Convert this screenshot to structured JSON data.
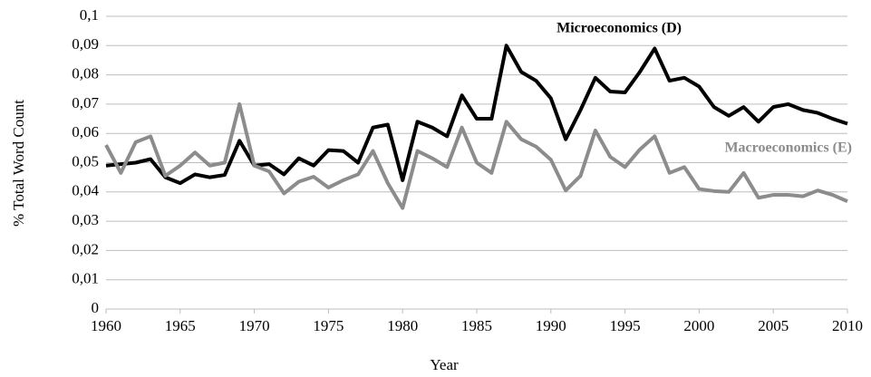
{
  "chart_data": {
    "type": "line",
    "x": [
      1960,
      1961,
      1962,
      1963,
      1964,
      1965,
      1966,
      1967,
      1968,
      1969,
      1970,
      1971,
      1972,
      1973,
      1974,
      1975,
      1976,
      1977,
      1978,
      1979,
      1980,
      1981,
      1982,
      1983,
      1984,
      1985,
      1986,
      1987,
      1988,
      1989,
      1990,
      1991,
      1992,
      1993,
      1994,
      1995,
      1996,
      1997,
      1998,
      1999,
      2000,
      2001,
      2002,
      2003,
      2004,
      2005,
      2006,
      2007,
      2008,
      2009,
      2010
    ],
    "series": [
      {
        "name": "Microeconomics (D)",
        "color": "#000000",
        "values": [
          0.049,
          0.0495,
          0.05,
          0.0512,
          0.045,
          0.043,
          0.046,
          0.045,
          0.0458,
          0.0575,
          0.049,
          0.0495,
          0.046,
          0.0515,
          0.049,
          0.0543,
          0.054,
          0.05,
          0.062,
          0.063,
          0.044,
          0.064,
          0.062,
          0.059,
          0.073,
          0.065,
          0.065,
          0.09,
          0.081,
          0.078,
          0.072,
          0.058,
          0.068,
          0.079,
          0.0743,
          0.074,
          0.081,
          0.089,
          0.078,
          0.079,
          0.076,
          0.069,
          0.066,
          0.069,
          0.064,
          0.069,
          0.07,
          0.068,
          0.067,
          0.065,
          0.0633
        ]
      },
      {
        "name": "Macroeconomics (E)",
        "color": "#8c8c8c",
        "values": [
          0.056,
          0.0465,
          0.057,
          0.059,
          0.0455,
          0.049,
          0.0535,
          0.049,
          0.05,
          0.07,
          0.049,
          0.047,
          0.0395,
          0.0435,
          0.0452,
          0.0415,
          0.044,
          0.046,
          0.054,
          0.043,
          0.0345,
          0.054,
          0.0515,
          0.0485,
          0.062,
          0.05,
          0.0465,
          0.064,
          0.058,
          0.0555,
          0.051,
          0.0405,
          0.0455,
          0.061,
          0.052,
          0.0485,
          0.0545,
          0.059,
          0.0465,
          0.0485,
          0.041,
          0.0403,
          0.04,
          0.0465,
          0.038,
          0.039,
          0.039,
          0.0385,
          0.0405,
          0.039,
          0.0368
        ]
      }
    ],
    "xlabel": "Year",
    "ylabel": "% Total Word Count",
    "xlim": [
      1960,
      2010
    ],
    "xticks": [
      1960,
      1965,
      1970,
      1975,
      1980,
      1985,
      1990,
      1995,
      2000,
      2005,
      2010
    ],
    "ylim": [
      0,
      0.1
    ],
    "yticks": [
      0,
      {
        "value": 0.01,
        "label": "0,01"
      },
      {
        "value": 0.02,
        "label": "0,02"
      },
      {
        "value": 0.03,
        "label": "0,03"
      },
      {
        "value": 0.04,
        "label": "0,04"
      },
      {
        "value": 0.05,
        "label": "0,05"
      },
      {
        "value": 0.06,
        "label": "0,06"
      },
      {
        "value": 0.07,
        "label": "0,07"
      },
      {
        "value": 0.08,
        "label": "0,08"
      },
      {
        "value": 0.09,
        "label": "0,09"
      },
      {
        "value": 0.1,
        "label": "0,1"
      }
    ],
    "grid": true
  }
}
